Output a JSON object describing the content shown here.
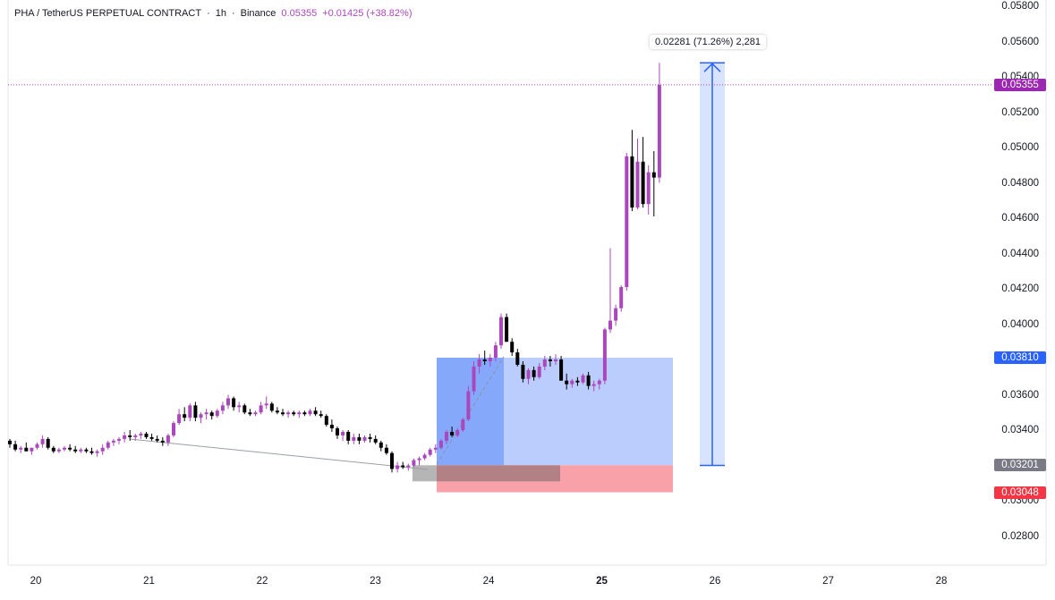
{
  "header": {
    "symbol": "PHA / TetherUS PERPETUAL CONTRACT",
    "sep1": "·",
    "interval": "1h",
    "sep2": "·",
    "exchange": "Binance",
    "last": "0.05355",
    "change": "+0.01425 (+38.82%)"
  },
  "chart_data": {
    "type": "candlestick",
    "x_axis": {
      "ticks": [
        "20",
        "21",
        "22",
        "23",
        "24",
        "25",
        "26",
        "27",
        "28"
      ],
      "bold_tick": "25"
    },
    "y_axis": {
      "ticks": [
        "0.05800",
        "0.05600",
        "0.05400",
        "0.05200",
        "0.05000",
        "0.04800",
        "0.04600",
        "0.04400",
        "0.04200",
        "0.04000",
        "0.03600",
        "0.03400",
        "0.03000",
        "0.02800"
      ],
      "range": [
        0.0268,
        0.0582
      ]
    },
    "price_tags": [
      {
        "label": "0.05355",
        "value": 0.05355,
        "color": "#9c27b0"
      },
      {
        "label": "0.03810",
        "value": 0.0381,
        "color": "#2962ff"
      },
      {
        "label": "0.03201",
        "value": 0.03201,
        "color": "#787b86"
      },
      {
        "label": "0.03048",
        "value": 0.03048,
        "color": "#f23645"
      }
    ],
    "measure": {
      "label": "0.02281 (71.26%) 2,281",
      "from": 0.032,
      "to": 0.0548
    },
    "long_position": {
      "entry": 0.03201,
      "target": 0.0381,
      "stop": 0.03048
    },
    "colors": {
      "up": "#ab47bc",
      "down": "#000000",
      "target_zone": "#bbcdfc",
      "target_dark": "#86a8fb",
      "stop_zone": "#f8a1a8",
      "last_line": "#ab47bc",
      "measure": "#2962ff"
    },
    "candles": [
      [
        0.0334,
        0.0335,
        0.033,
        0.0332
      ],
      [
        0.0332,
        0.0334,
        0.0328,
        0.0329
      ],
      [
        0.0329,
        0.0331,
        0.0327,
        0.033
      ],
      [
        0.033,
        0.0333,
        0.0328,
        0.0328
      ],
      [
        0.0328,
        0.033,
        0.0326,
        0.033
      ],
      [
        0.033,
        0.0333,
        0.0329,
        0.0332
      ],
      [
        0.0332,
        0.0337,
        0.033,
        0.0335
      ],
      [
        0.0335,
        0.0336,
        0.0329,
        0.033
      ],
      [
        0.033,
        0.0331,
        0.0327,
        0.0328
      ],
      [
        0.0328,
        0.033,
        0.0327,
        0.0329
      ],
      [
        0.0329,
        0.0331,
        0.0328,
        0.033
      ],
      [
        0.033,
        0.0332,
        0.0328,
        0.0329
      ],
      [
        0.0329,
        0.0331,
        0.0327,
        0.0328
      ],
      [
        0.0328,
        0.033,
        0.0327,
        0.0329
      ],
      [
        0.0329,
        0.033,
        0.0327,
        0.0328
      ],
      [
        0.0328,
        0.033,
        0.0326,
        0.0327
      ],
      [
        0.0327,
        0.0329,
        0.0325,
        0.0328
      ],
      [
        0.0328,
        0.0332,
        0.0326,
        0.033
      ],
      [
        0.033,
        0.0334,
        0.0329,
        0.0333
      ],
      [
        0.0333,
        0.0335,
        0.0331,
        0.0334
      ],
      [
        0.0334,
        0.0336,
        0.0332,
        0.0335
      ],
      [
        0.0335,
        0.0339,
        0.0333,
        0.0337
      ],
      [
        0.0337,
        0.034,
        0.0334,
        0.0336
      ],
      [
        0.0336,
        0.0338,
        0.0334,
        0.0337
      ],
      [
        0.0337,
        0.0339,
        0.0335,
        0.0338
      ],
      [
        0.0338,
        0.0339,
        0.0335,
        0.0336
      ],
      [
        0.0336,
        0.0338,
        0.0334,
        0.0335
      ],
      [
        0.0335,
        0.0337,
        0.0333,
        0.0334
      ],
      [
        0.0334,
        0.0336,
        0.0331,
        0.0333
      ],
      [
        0.0333,
        0.0338,
        0.0331,
        0.0337
      ],
      [
        0.0337,
        0.0345,
        0.0336,
        0.0344
      ],
      [
        0.0344,
        0.0352,
        0.0343,
        0.0349
      ],
      [
        0.0349,
        0.0353,
        0.0345,
        0.0347
      ],
      [
        0.0347,
        0.0355,
        0.0345,
        0.0354
      ],
      [
        0.0354,
        0.0356,
        0.0345,
        0.0347
      ],
      [
        0.0347,
        0.035,
        0.0344,
        0.0349
      ],
      [
        0.0349,
        0.0352,
        0.0346,
        0.035
      ],
      [
        0.035,
        0.0351,
        0.0346,
        0.0348
      ],
      [
        0.0348,
        0.0352,
        0.0347,
        0.0351
      ],
      [
        0.0351,
        0.0356,
        0.0349,
        0.0354
      ],
      [
        0.0354,
        0.036,
        0.0352,
        0.0358
      ],
      [
        0.0358,
        0.0359,
        0.0351,
        0.0353
      ],
      [
        0.0353,
        0.0356,
        0.035,
        0.0354
      ],
      [
        0.0354,
        0.0355,
        0.0349,
        0.035
      ],
      [
        0.035,
        0.0352,
        0.0348,
        0.0349
      ],
      [
        0.0349,
        0.0351,
        0.0348,
        0.035
      ],
      [
        0.035,
        0.0356,
        0.0349,
        0.0354
      ],
      [
        0.0354,
        0.0359,
        0.0352,
        0.0355
      ],
      [
        0.0355,
        0.0356,
        0.035,
        0.0351
      ],
      [
        0.0351,
        0.0353,
        0.0349,
        0.035
      ],
      [
        0.035,
        0.0352,
        0.0348,
        0.0349
      ],
      [
        0.0349,
        0.0351,
        0.0347,
        0.035
      ],
      [
        0.035,
        0.0351,
        0.0348,
        0.0349
      ],
      [
        0.0349,
        0.0351,
        0.0347,
        0.035
      ],
      [
        0.035,
        0.0351,
        0.0348,
        0.0349
      ],
      [
        0.0349,
        0.0352,
        0.0348,
        0.0351
      ],
      [
        0.0351,
        0.0353,
        0.0348,
        0.0349
      ],
      [
        0.0349,
        0.0351,
        0.0347,
        0.0348
      ],
      [
        0.0348,
        0.0349,
        0.0342,
        0.0343
      ],
      [
        0.0343,
        0.0346,
        0.0339,
        0.0341
      ],
      [
        0.0341,
        0.0342,
        0.0335,
        0.0337
      ],
      [
        0.0337,
        0.034,
        0.0334,
        0.0339
      ],
      [
        0.0339,
        0.034,
        0.0332,
        0.0334
      ],
      [
        0.0334,
        0.0338,
        0.0332,
        0.0336
      ],
      [
        0.0336,
        0.0338,
        0.0332,
        0.0334
      ],
      [
        0.0334,
        0.0337,
        0.0333,
        0.0336
      ],
      [
        0.0336,
        0.0338,
        0.0333,
        0.0335
      ],
      [
        0.0335,
        0.0337,
        0.0332,
        0.0333
      ],
      [
        0.0333,
        0.0334,
        0.0328,
        0.033
      ],
      [
        0.033,
        0.0332,
        0.0326,
        0.0327
      ],
      [
        0.0327,
        0.0328,
        0.0316,
        0.0318
      ],
      [
        0.0318,
        0.0322,
        0.0316,
        0.032
      ],
      [
        0.032,
        0.0322,
        0.0318,
        0.0319
      ],
      [
        0.0319,
        0.0321,
        0.0317,
        0.032
      ],
      [
        0.032,
        0.0324,
        0.0319,
        0.0323
      ],
      [
        0.0323,
        0.0325,
        0.032,
        0.0324
      ],
      [
        0.0324,
        0.0327,
        0.0323,
        0.0326
      ],
      [
        0.0326,
        0.033,
        0.0325,
        0.0329
      ],
      [
        0.0329,
        0.0332,
        0.0327,
        0.033
      ],
      [
        0.033,
        0.0335,
        0.0329,
        0.0334
      ],
      [
        0.0334,
        0.034,
        0.0332,
        0.0339
      ],
      [
        0.0339,
        0.0342,
        0.0336,
        0.0337
      ],
      [
        0.0337,
        0.0341,
        0.0336,
        0.034
      ],
      [
        0.034,
        0.0347,
        0.0339,
        0.0346
      ],
      [
        0.0346,
        0.0365,
        0.0345,
        0.0362
      ],
      [
        0.0362,
        0.0379,
        0.036,
        0.0376
      ],
      [
        0.0376,
        0.0383,
        0.0372,
        0.038
      ],
      [
        0.038,
        0.0385,
        0.0377,
        0.0379
      ],
      [
        0.0379,
        0.0383,
        0.0376,
        0.0381
      ],
      [
        0.0381,
        0.039,
        0.0379,
        0.0388
      ],
      [
        0.0388,
        0.0406,
        0.0386,
        0.0404
      ],
      [
        0.0404,
        0.0406,
        0.039,
        0.039
      ],
      [
        0.039,
        0.0392,
        0.0382,
        0.0384
      ],
      [
        0.0384,
        0.0386,
        0.0376,
        0.0377
      ],
      [
        0.0377,
        0.0379,
        0.0367,
        0.0369
      ],
      [
        0.0369,
        0.0375,
        0.0366,
        0.0374
      ],
      [
        0.0374,
        0.0376,
        0.0368,
        0.037
      ],
      [
        0.037,
        0.0378,
        0.0369,
        0.0376
      ],
      [
        0.0376,
        0.0382,
        0.0374,
        0.038
      ],
      [
        0.038,
        0.0382,
        0.0376,
        0.0379
      ],
      [
        0.0379,
        0.0383,
        0.0377,
        0.038
      ],
      [
        0.038,
        0.0382,
        0.0368,
        0.0368
      ],
      [
        0.0368,
        0.0372,
        0.0363,
        0.0366
      ],
      [
        0.0366,
        0.0369,
        0.0364,
        0.0368
      ],
      [
        0.0368,
        0.037,
        0.0365,
        0.0367
      ],
      [
        0.0367,
        0.0372,
        0.0366,
        0.0371
      ],
      [
        0.0371,
        0.0373,
        0.0363,
        0.0365
      ],
      [
        0.0365,
        0.0368,
        0.0362,
        0.0366
      ],
      [
        0.0366,
        0.0369,
        0.0363,
        0.0368
      ],
      [
        0.0368,
        0.0398,
        0.0366,
        0.0397
      ],
      [
        0.0397,
        0.0443,
        0.0395,
        0.0402
      ],
      [
        0.0402,
        0.0411,
        0.0399,
        0.0409
      ],
      [
        0.0409,
        0.0422,
        0.0407,
        0.0421
      ],
      [
        0.0421,
        0.0497,
        0.0419,
        0.0495
      ],
      [
        0.0495,
        0.051,
        0.0464,
        0.0466
      ],
      [
        0.0466,
        0.0505,
        0.0465,
        0.0492
      ],
      [
        0.0492,
        0.0506,
        0.0466,
        0.0468
      ],
      [
        0.0468,
        0.049,
        0.0462,
        0.0486
      ],
      [
        0.0486,
        0.0498,
        0.0461,
        0.0483
      ],
      [
        0.0483,
        0.0548,
        0.048,
        0.05355
      ]
    ]
  }
}
